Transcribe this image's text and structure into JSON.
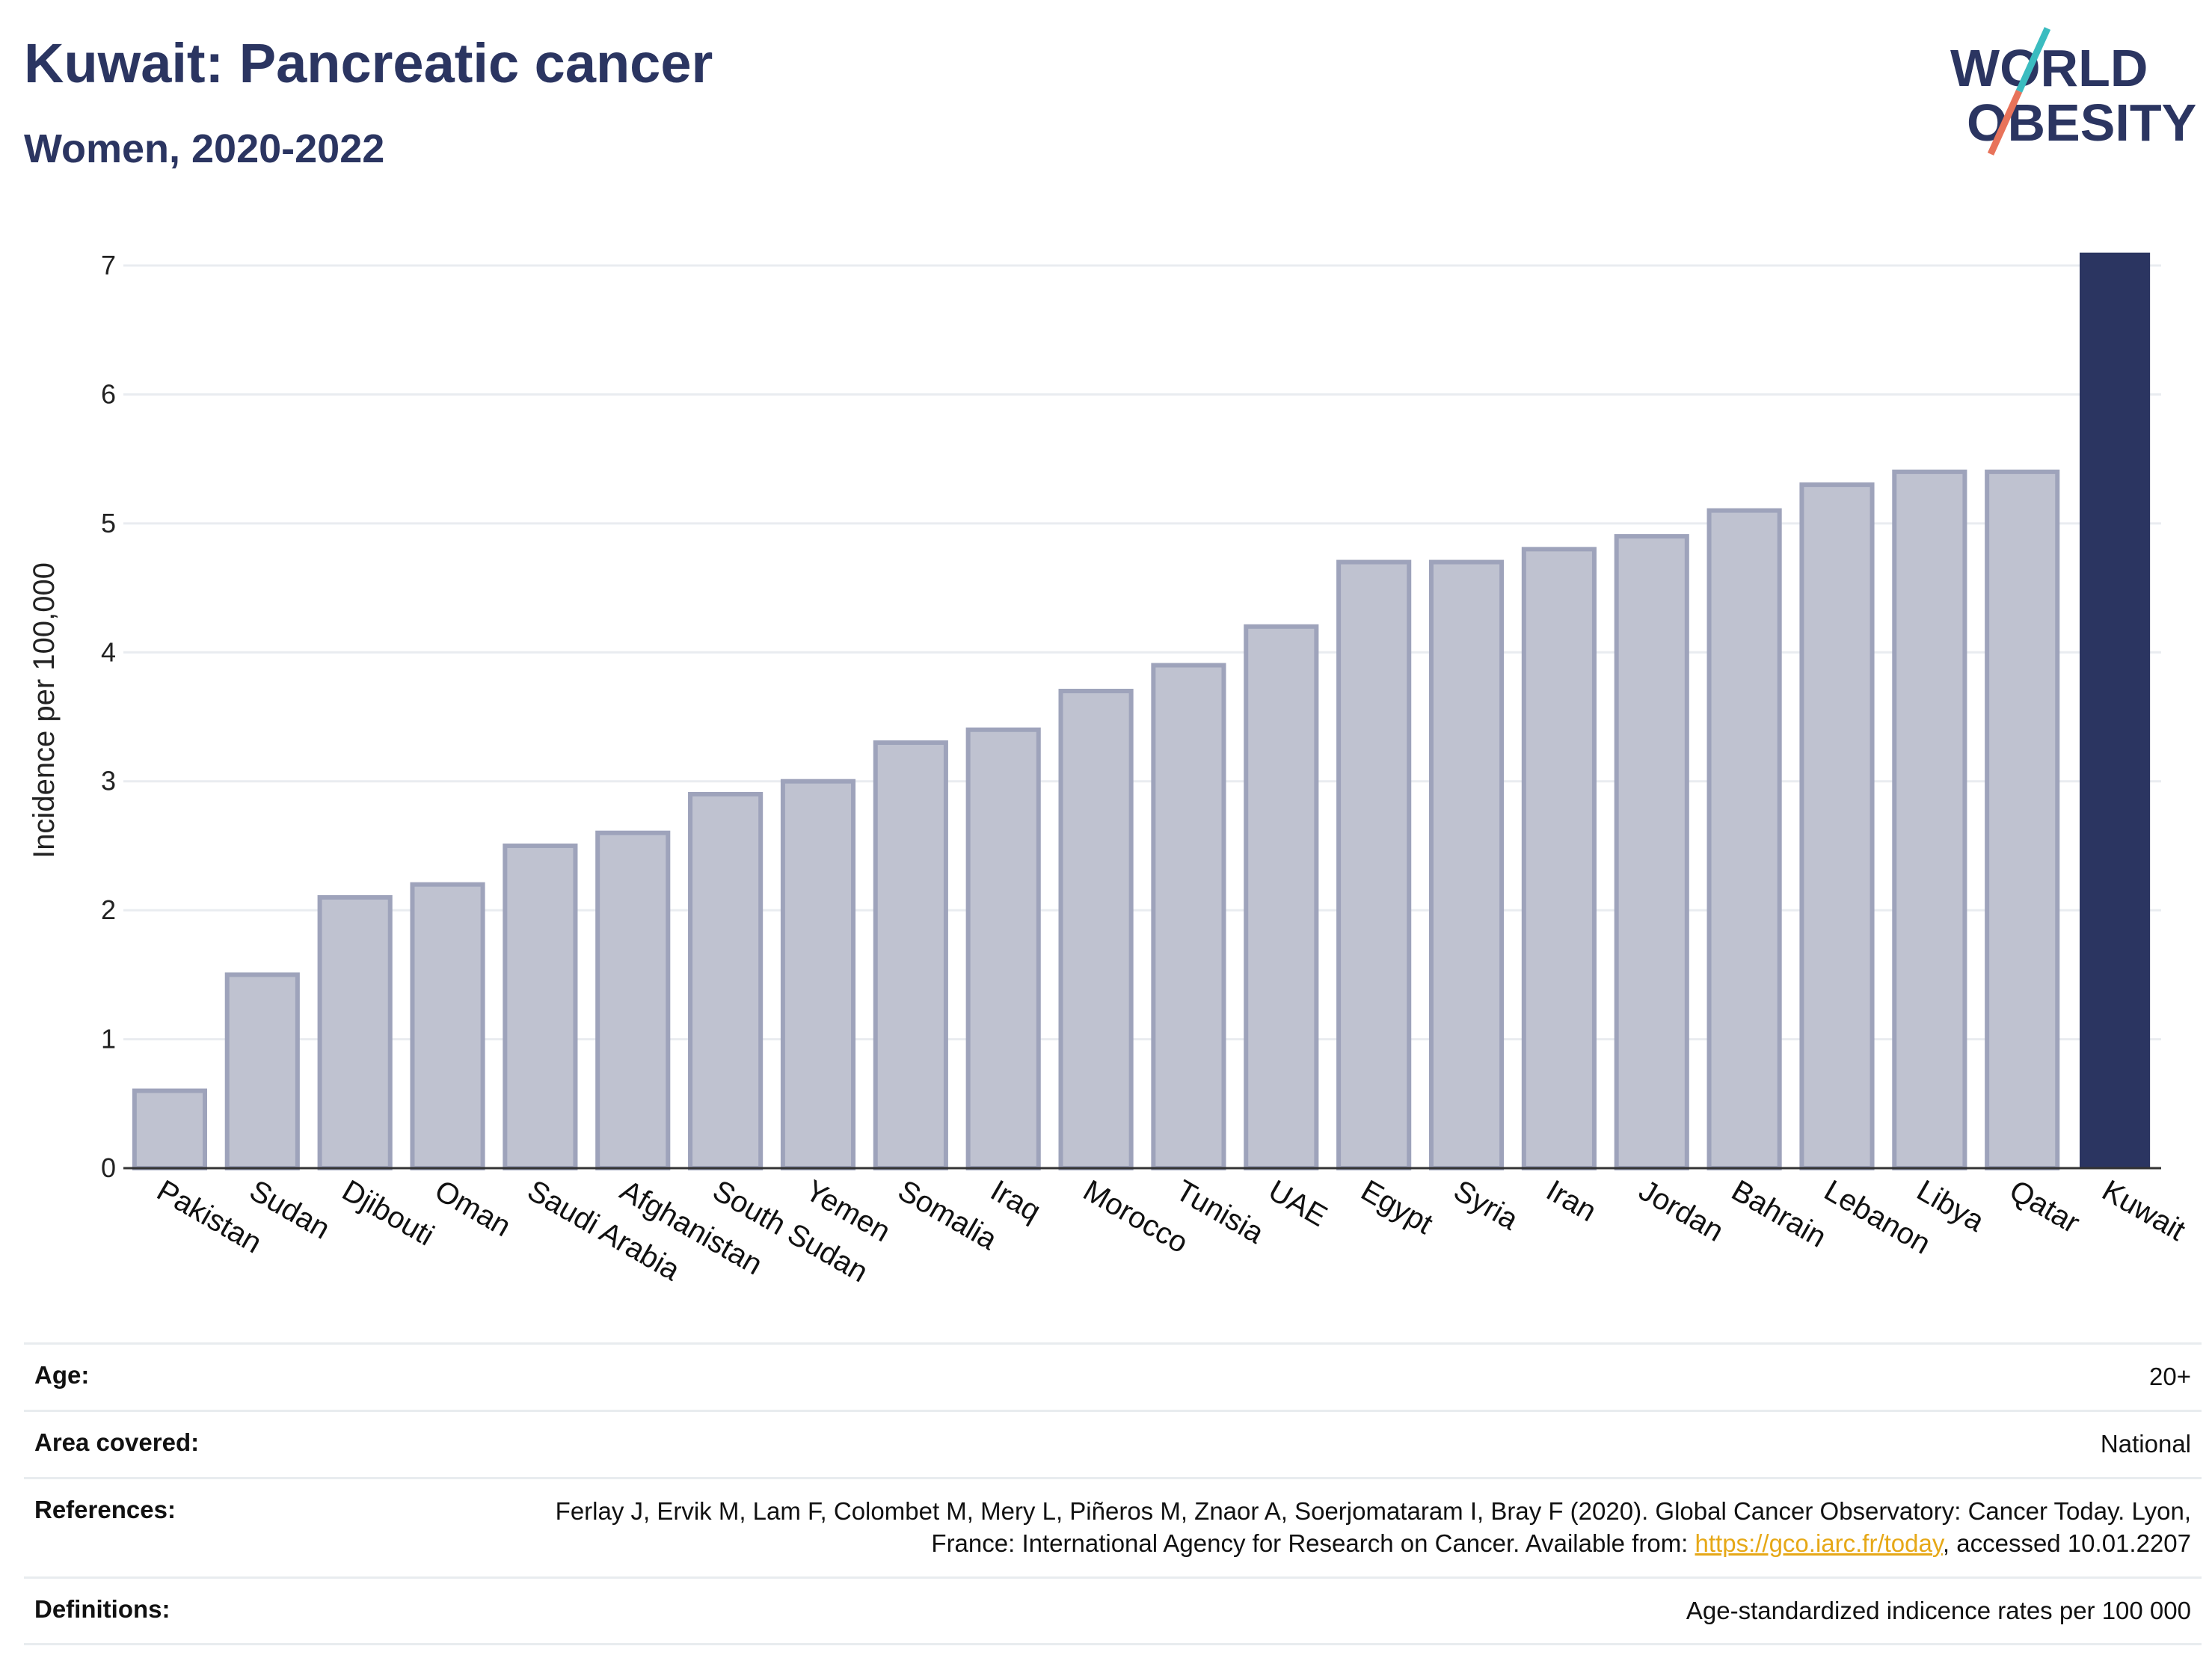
{
  "header": {
    "title": "Kuwait: Pancreatic cancer",
    "subtitle": "Women, 2020-2022"
  },
  "logo": {
    "line1": "WORLD",
    "line2": "OBESITY",
    "colors": {
      "text": "#2b3561",
      "slash_top": "#3bbcc0",
      "slash_bottom": "#e8735a"
    }
  },
  "chart_data": {
    "type": "bar",
    "ylabel": "Incidence per 100,000",
    "ylim": [
      0,
      7.2
    ],
    "yticks": [
      0,
      1,
      2,
      3,
      4,
      5,
      6,
      7
    ],
    "grid": true,
    "highlight": "Kuwait",
    "colors": {
      "bar": "#bfc2d0",
      "bar_edge": "#9ea3bb",
      "highlight": "#2b3561"
    },
    "categories": [
      "Pakistan",
      "Sudan",
      "Djibouti",
      "Oman",
      "Saudi Arabia",
      "Afghanistan",
      "South Sudan",
      "Yemen",
      "Somalia",
      "Iraq",
      "Morocco",
      "Tunisia",
      "UAE",
      "Egypt",
      "Syria",
      "Iran",
      "Jordan",
      "Bahrain",
      "Lebanon",
      "Libya",
      "Qatar",
      "Kuwait"
    ],
    "values": [
      0.6,
      1.5,
      2.1,
      2.2,
      2.5,
      2.6,
      2.9,
      3.0,
      3.3,
      3.4,
      3.7,
      3.9,
      4.2,
      4.7,
      4.7,
      4.8,
      4.9,
      5.1,
      5.3,
      5.4,
      5.4,
      7.1
    ]
  },
  "info": {
    "age_label": "Age:",
    "age_value": "20+",
    "area_label": "Area covered:",
    "area_value": "National",
    "refs_label": "References:",
    "refs_text1": "Ferlay J, Ervik M, Lam F, Colombet M, Mery L, Piñeros M, Znaor A, Soerjomataram I, Bray F (2020). Global Cancer Observatory: Cancer Today. Lyon, France: International Agency for Research on Cancer. Available from: ",
    "refs_link": "https://gco.iarc.fr/today",
    "refs_text2": ", accessed 10.01.2207",
    "defs_label": "Definitions:",
    "defs_value": "Age-standardized indicence rates per 100 000"
  }
}
